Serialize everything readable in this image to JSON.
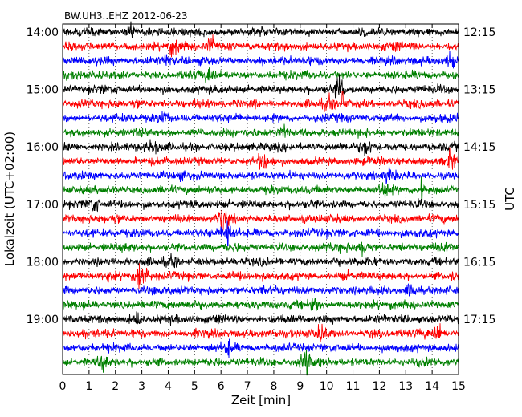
{
  "chart_data": {
    "type": "line",
    "title": "BW.UH3..EHZ 2012-06-23",
    "xlabel": "Zeit  [min]",
    "ylabel_left": "Lokalzeit (UTC+02:00)",
    "ylabel_right": "UTC",
    "xlim": [
      0,
      15
    ],
    "x_ticks": [
      "0",
      "1",
      "2",
      "3",
      "4",
      "5",
      "6",
      "7",
      "8",
      "9",
      "10",
      "11",
      "12",
      "13",
      "14",
      "15"
    ],
    "grid": true,
    "trace_start_local": "14:00",
    "trace_length_min": 15,
    "trace_count": 24,
    "trace_colors": [
      "#000000",
      "#ff0000",
      "#0000ff",
      "#008000"
    ],
    "left_labels": [
      "14:00",
      "15:00",
      "16:00",
      "17:00",
      "18:00",
      "19:00"
    ],
    "right_labels": [
      "12:15",
      "13:15",
      "14:15",
      "15:15",
      "16:15",
      "17:15"
    ],
    "events": [
      {
        "trace": 0,
        "minute": 2.6,
        "amp": 1.6
      },
      {
        "trace": 1,
        "minute": 5.6,
        "amp": 1.6
      },
      {
        "trace": 1,
        "minute": 4.2,
        "amp": 1.2
      },
      {
        "trace": 2,
        "minute": 14.7,
        "amp": 1.8
      },
      {
        "trace": 2,
        "minute": 4.0,
        "amp": 1.2
      },
      {
        "trace": 3,
        "minute": 5.6,
        "amp": 1.5
      },
      {
        "trace": 4,
        "minute": 10.5,
        "amp": 2.2
      },
      {
        "trace": 5,
        "minute": 10.1,
        "amp": 1.6
      },
      {
        "trace": 6,
        "minute": 3.8,
        "amp": 1.2
      },
      {
        "trace": 7,
        "minute": 8.4,
        "amp": 1.3
      },
      {
        "trace": 8,
        "minute": 11.5,
        "amp": 1.8
      },
      {
        "trace": 8,
        "minute": 3.4,
        "amp": 1.2
      },
      {
        "trace": 9,
        "minute": 7.6,
        "amp": 1.6
      },
      {
        "trace": 9,
        "minute": 14.7,
        "amp": 2.0
      },
      {
        "trace": 10,
        "minute": 12.4,
        "amp": 1.4
      },
      {
        "trace": 11,
        "minute": 12.2,
        "amp": 1.5
      },
      {
        "trace": 12,
        "minute": 1.2,
        "amp": 1.5
      },
      {
        "trace": 13,
        "minute": 6.1,
        "amp": 2.4
      },
      {
        "trace": 14,
        "minute": 6.2,
        "amp": 2.0
      },
      {
        "trace": 15,
        "minute": 11.4,
        "amp": 1.8
      },
      {
        "trace": 16,
        "minute": 4.2,
        "amp": 1.3
      },
      {
        "trace": 17,
        "minute": 3.0,
        "amp": 2.4
      },
      {
        "trace": 17,
        "minute": 1.7,
        "amp": 1.2
      },
      {
        "trace": 18,
        "minute": 13.2,
        "amp": 1.4
      },
      {
        "trace": 19,
        "minute": 9.5,
        "amp": 1.3
      },
      {
        "trace": 20,
        "minute": 2.8,
        "amp": 1.6
      },
      {
        "trace": 21,
        "minute": 14.2,
        "amp": 1.5
      },
      {
        "trace": 21,
        "minute": 9.8,
        "amp": 1.3
      },
      {
        "trace": 22,
        "minute": 6.3,
        "amp": 1.2
      },
      {
        "trace": 23,
        "minute": 9.2,
        "amp": 1.8
      },
      {
        "trace": 23,
        "minute": 1.5,
        "amp": 1.3
      }
    ],
    "spikes": [
      {
        "trace": 13,
        "minute": 6.05
      },
      {
        "trace": 14,
        "minute": 6.25
      },
      {
        "trace": 5,
        "minute": 10.6
      },
      {
        "trace": 17,
        "minute": 2.9
      },
      {
        "trace": 23,
        "minute": 9.25
      },
      {
        "trace": 11,
        "minute": 13.6
      }
    ]
  }
}
